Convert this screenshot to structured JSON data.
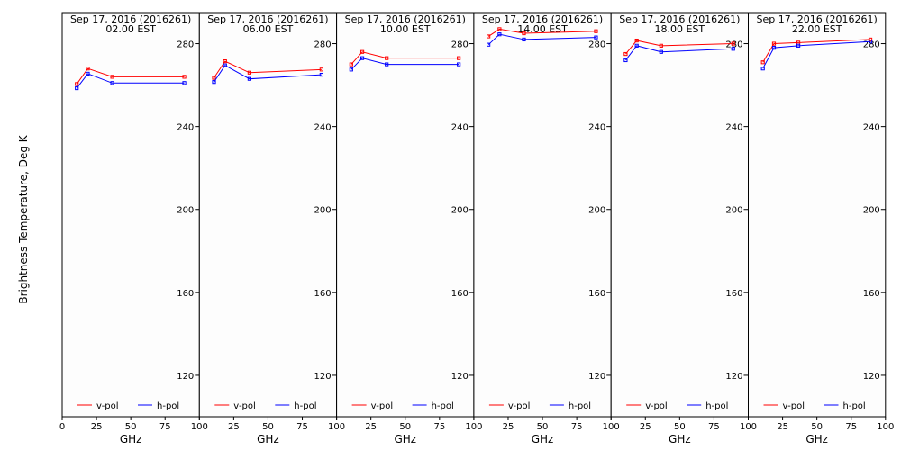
{
  "chart_data": {
    "type": "line",
    "ylabel": "Brightness Temperature, Deg K",
    "xlabel": "GHz",
    "ylim": [
      100,
      295
    ],
    "xlim": [
      0,
      100
    ],
    "yticks": [
      120,
      160,
      200,
      240,
      280
    ],
    "xticks": [
      0,
      25,
      50,
      75,
      100
    ],
    "x": [
      10.65,
      18.7,
      36.5,
      89.0
    ],
    "legend": [
      "v-pol",
      "h-pol"
    ],
    "colors": {
      "v": "#ff0000",
      "h": "#0000ff"
    },
    "panels": [
      {
        "title": "Sep 17, 2016 (2016261)",
        "subtitle": "02.00 EST",
        "v": [
          260.5,
          268,
          264,
          264
        ],
        "h": [
          258.5,
          265.5,
          261,
          261
        ]
      },
      {
        "title": "Sep 17, 2016 (2016261)",
        "subtitle": "06.00 EST",
        "v": [
          263.5,
          271.5,
          266,
          267.5
        ],
        "h": [
          261.5,
          269.5,
          263,
          265
        ]
      },
      {
        "title": "Sep 17, 2016 (2016261)",
        "subtitle": "10.00 EST",
        "v": [
          270,
          276,
          273,
          273
        ],
        "h": [
          267.5,
          273,
          270,
          270
        ]
      },
      {
        "title": "Sep 17, 2016 (2016261)",
        "subtitle": "14.00 EST",
        "v": [
          283.5,
          287,
          285,
          286
        ],
        "h": [
          279.5,
          284.5,
          282,
          283
        ]
      },
      {
        "title": "Sep 17, 2016 (2016261)",
        "subtitle": "18.00 EST",
        "v": [
          275,
          281.5,
          279,
          280
        ],
        "h": [
          272,
          279,
          276,
          277.5
        ]
      },
      {
        "title": "Sep 17, 2016 (2016261)",
        "subtitle": "22.00 EST",
        "v": [
          271,
          280,
          280.5,
          282
        ],
        "h": [
          268,
          278,
          279,
          281
        ]
      }
    ]
  }
}
